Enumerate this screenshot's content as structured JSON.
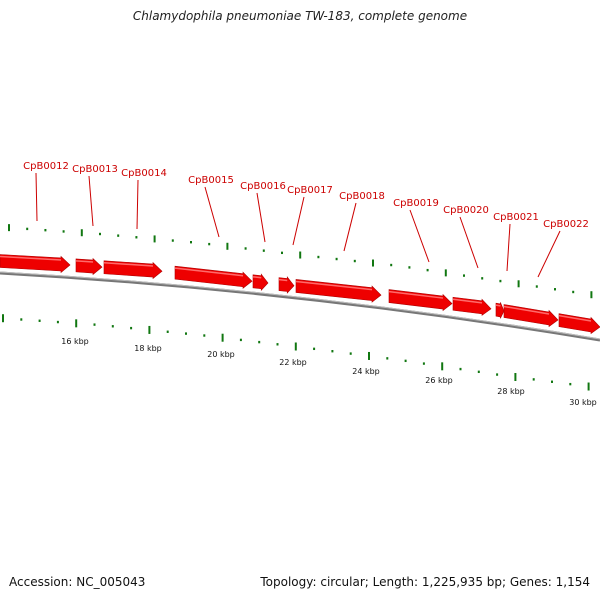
{
  "title": "Chlamydophila pneumoniae TW-183, complete genome",
  "footer": {
    "accession": "Accession: NC_005043",
    "summary": "Topology: circular; Length: 1,225,935 bp; Genes: 1,154"
  },
  "colors": {
    "gene": "#ee0000",
    "label": "#cc0000",
    "backbone": "#777777",
    "ticks": "#117711"
  },
  "genes": [
    {
      "name": "CpB0012"
    },
    {
      "name": "CpB0013"
    },
    {
      "name": "CpB0014"
    },
    {
      "name": "CpB0015"
    },
    {
      "name": "CpB0016"
    },
    {
      "name": "CpB0017"
    },
    {
      "name": "CpB0018"
    },
    {
      "name": "CpB0019"
    },
    {
      "name": "CpB0020"
    },
    {
      "name": "CpB0021"
    },
    {
      "name": "CpB0022"
    }
  ],
  "scale": {
    "labels": [
      "16 kbp",
      "18 kbp",
      "20 kbp",
      "22 kbp",
      "24 kbp",
      "26 kbp",
      "28 kbp",
      "30 kbp"
    ]
  }
}
